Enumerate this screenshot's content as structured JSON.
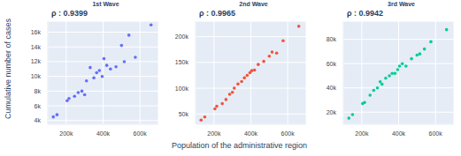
{
  "chart_data": [
    {
      "type": "scatter",
      "title": "1st Wave",
      "annotation": "ρ : 0.9399",
      "y_label": "Cumulative number of cases",
      "color": "#636efa",
      "grid": true,
      "x": [
        130000,
        150000,
        205000,
        215000,
        245000,
        265000,
        285000,
        300000,
        310000,
        330000,
        350000,
        365000,
        380000,
        395000,
        405000,
        420000,
        440000,
        470000,
        500000,
        515000,
        540000,
        575000,
        660000
      ],
      "values": [
        4500,
        4800,
        6700,
        7000,
        7300,
        7800,
        8000,
        7500,
        9400,
        11200,
        9800,
        10500,
        10800,
        10000,
        12400,
        11500,
        11000,
        11300,
        14200,
        12000,
        15600,
        12600,
        17000
      ],
      "xlim": [
        100000,
        700000
      ],
      "ylim": [
        3500,
        17500
      ],
      "xticks": [
        {
          "value": 200000,
          "label": "200k"
        },
        {
          "value": 400000,
          "label": "400k"
        },
        {
          "value": 600000,
          "label": "600k"
        }
      ],
      "yticks": [
        {
          "value": 4000,
          "label": "4k"
        },
        {
          "value": 6000,
          "label": "6k"
        },
        {
          "value": 8000,
          "label": "8k"
        },
        {
          "value": 10000,
          "label": "10k"
        },
        {
          "value": 12000,
          "label": "12k"
        },
        {
          "value": 14000,
          "label": "14k"
        },
        {
          "value": 16000,
          "label": "16k"
        }
      ]
    },
    {
      "type": "scatter",
      "title": "2nd Wave",
      "annotation": "ρ : 0.9965",
      "x_label": "Population of the administrative region",
      "color": "#ef553b",
      "grid": true,
      "x": [
        130000,
        150000,
        205000,
        215000,
        245000,
        265000,
        285000,
        300000,
        310000,
        330000,
        350000,
        365000,
        380000,
        395000,
        405000,
        420000,
        440000,
        470000,
        500000,
        515000,
        540000,
        575000,
        660000
      ],
      "values": [
        38000,
        44000,
        60000,
        65000,
        70000,
        78000,
        88000,
        92000,
        100000,
        108000,
        113000,
        120000,
        125000,
        130000,
        134000,
        135000,
        146000,
        152000,
        162000,
        170000,
        168000,
        192000,
        220000
      ],
      "xlim": [
        100000,
        700000
      ],
      "ylim": [
        30000,
        230000
      ],
      "xticks": [
        {
          "value": 200000,
          "label": "200k"
        },
        {
          "value": 400000,
          "label": "400k"
        },
        {
          "value": 600000,
          "label": "600k"
        }
      ],
      "yticks": [
        {
          "value": 50000,
          "label": "50k"
        },
        {
          "value": 100000,
          "label": "100k"
        },
        {
          "value": 150000,
          "label": "150k"
        },
        {
          "value": 200000,
          "label": "200k"
        }
      ]
    },
    {
      "type": "scatter",
      "title": "3rd Wave",
      "annotation": "ρ : 0.9942",
      "color": "#00cc96",
      "grid": true,
      "x": [
        130000,
        150000,
        205000,
        215000,
        245000,
        265000,
        285000,
        300000,
        310000,
        330000,
        350000,
        365000,
        380000,
        395000,
        405000,
        420000,
        440000,
        470000,
        500000,
        515000,
        540000,
        575000,
        660000
      ],
      "values": [
        15000,
        18000,
        27000,
        28000,
        34000,
        38000,
        40000,
        45000,
        43000,
        48000,
        50000,
        52000,
        52000,
        55000,
        58000,
        60000,
        58000,
        64000,
        67000,
        68000,
        72000,
        78000,
        88000
      ],
      "xlim": [
        100000,
        700000
      ],
      "ylim": [
        10000,
        95000
      ],
      "xticks": [
        {
          "value": 200000,
          "label": "200k"
        },
        {
          "value": 400000,
          "label": "400k"
        },
        {
          "value": 600000,
          "label": "600k"
        }
      ],
      "yticks": [
        {
          "value": 20000,
          "label": "20k"
        },
        {
          "value": 40000,
          "label": "40k"
        },
        {
          "value": 60000,
          "label": "60k"
        },
        {
          "value": 80000,
          "label": "80k"
        }
      ]
    }
  ]
}
